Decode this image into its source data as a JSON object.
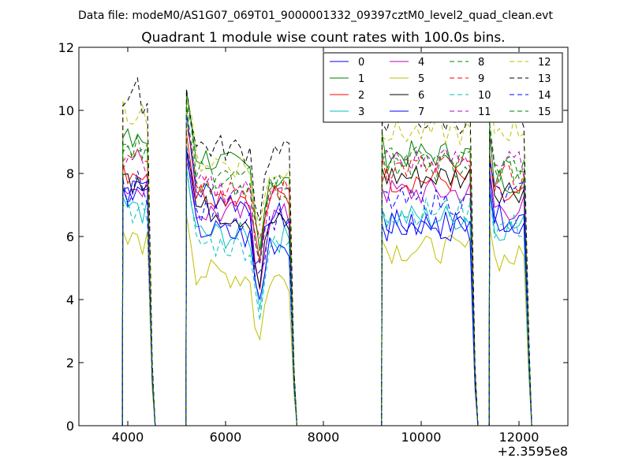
{
  "chart_data": {
    "type": "line",
    "suptitle": "Data file: modeM0/AS1G07_069T01_9000001332_09397cztM0_level2_quad_clean.evt",
    "title": "Quadrant 1 module wise count rates with 100.0s bins.",
    "xlabel": "",
    "ylabel": "",
    "x_offset_label": "+2.3595e8",
    "xlim": [
      3000,
      13000
    ],
    "ylim": [
      0,
      12
    ],
    "xticks": [
      4000,
      6000,
      8000,
      10000,
      12000
    ],
    "yticks": [
      0,
      2,
      4,
      6,
      8,
      10,
      12
    ],
    "grid": false,
    "legend_position": "top-right",
    "legend_columns": 4,
    "segments": [
      [
        3900,
        4500
      ],
      [
        5200,
        7400
      ],
      [
        9200,
        11100
      ],
      [
        11400,
        12200
      ]
    ],
    "series": [
      {
        "name": "0",
        "color": "#0000ff",
        "dash": "solid",
        "base": [
          7.5,
          7.6,
          6.5,
          6.4,
          6.5
        ]
      },
      {
        "name": "1",
        "color": "#008000",
        "dash": "solid",
        "base": [
          9.0,
          8.7,
          7.6,
          8.6,
          7.8
        ]
      },
      {
        "name": "2",
        "color": "#ff0000",
        "dash": "solid",
        "base": [
          8.0,
          7.4,
          7.2,
          7.8,
          7.2
        ]
      },
      {
        "name": "3",
        "color": "#00bfbf",
        "dash": "solid",
        "base": [
          6.8,
          6.1,
          5.9,
          6.6,
          6.3
        ]
      },
      {
        "name": "4",
        "color": "#bf00bf",
        "dash": "solid",
        "base": [
          7.6,
          6.8,
          6.6,
          7.4,
          6.9
        ]
      },
      {
        "name": "5",
        "color": "#bfbf00",
        "dash": "solid",
        "base": [
          5.8,
          4.9,
          4.6,
          5.6,
          5.3
        ]
      },
      {
        "name": "6",
        "color": "#000000",
        "dash": "solid",
        "base": [
          7.8,
          7.0,
          6.3,
          7.9,
          7.5
        ]
      },
      {
        "name": "7",
        "color": "#0000ff",
        "dash": "solid",
        "base": [
          7.5,
          6.3,
          5.7,
          6.3,
          6.6
        ]
      },
      {
        "name": "8",
        "color": "#008000",
        "dash": "dashed",
        "base": [
          8.9,
          8.1,
          7.6,
          8.4,
          8.1
        ]
      },
      {
        "name": "9",
        "color": "#ff0000",
        "dash": "dashed",
        "base": [
          8.7,
          7.8,
          7.4,
          8.2,
          7.8
        ]
      },
      {
        "name": "10",
        "color": "#00bfbf",
        "dash": "dashed",
        "base": [
          6.8,
          5.8,
          5.6,
          6.8,
          6.3
        ]
      },
      {
        "name": "11",
        "color": "#bf00bf",
        "dash": "dashed",
        "base": [
          8.2,
          7.6,
          7.3,
          8.4,
          8.3
        ]
      },
      {
        "name": "12",
        "color": "#bfbf00",
        "dash": "dashed",
        "base": [
          9.9,
          8.5,
          8.0,
          9.3,
          9.4
        ]
      },
      {
        "name": "13",
        "color": "#000000",
        "dash": "dashed",
        "base": [
          10.3,
          8.9,
          8.6,
          9.7,
          9.7
        ]
      },
      {
        "name": "14",
        "color": "#0000ff",
        "dash": "dashed",
        "base": [
          7.4,
          6.8,
          6.4,
          7.1,
          7.3
        ]
      },
      {
        "name": "15",
        "color": "#008000",
        "dash": "dashed",
        "base": [
          8.7,
          7.9,
          7.4,
          8.2,
          8.2
        ]
      }
    ]
  }
}
